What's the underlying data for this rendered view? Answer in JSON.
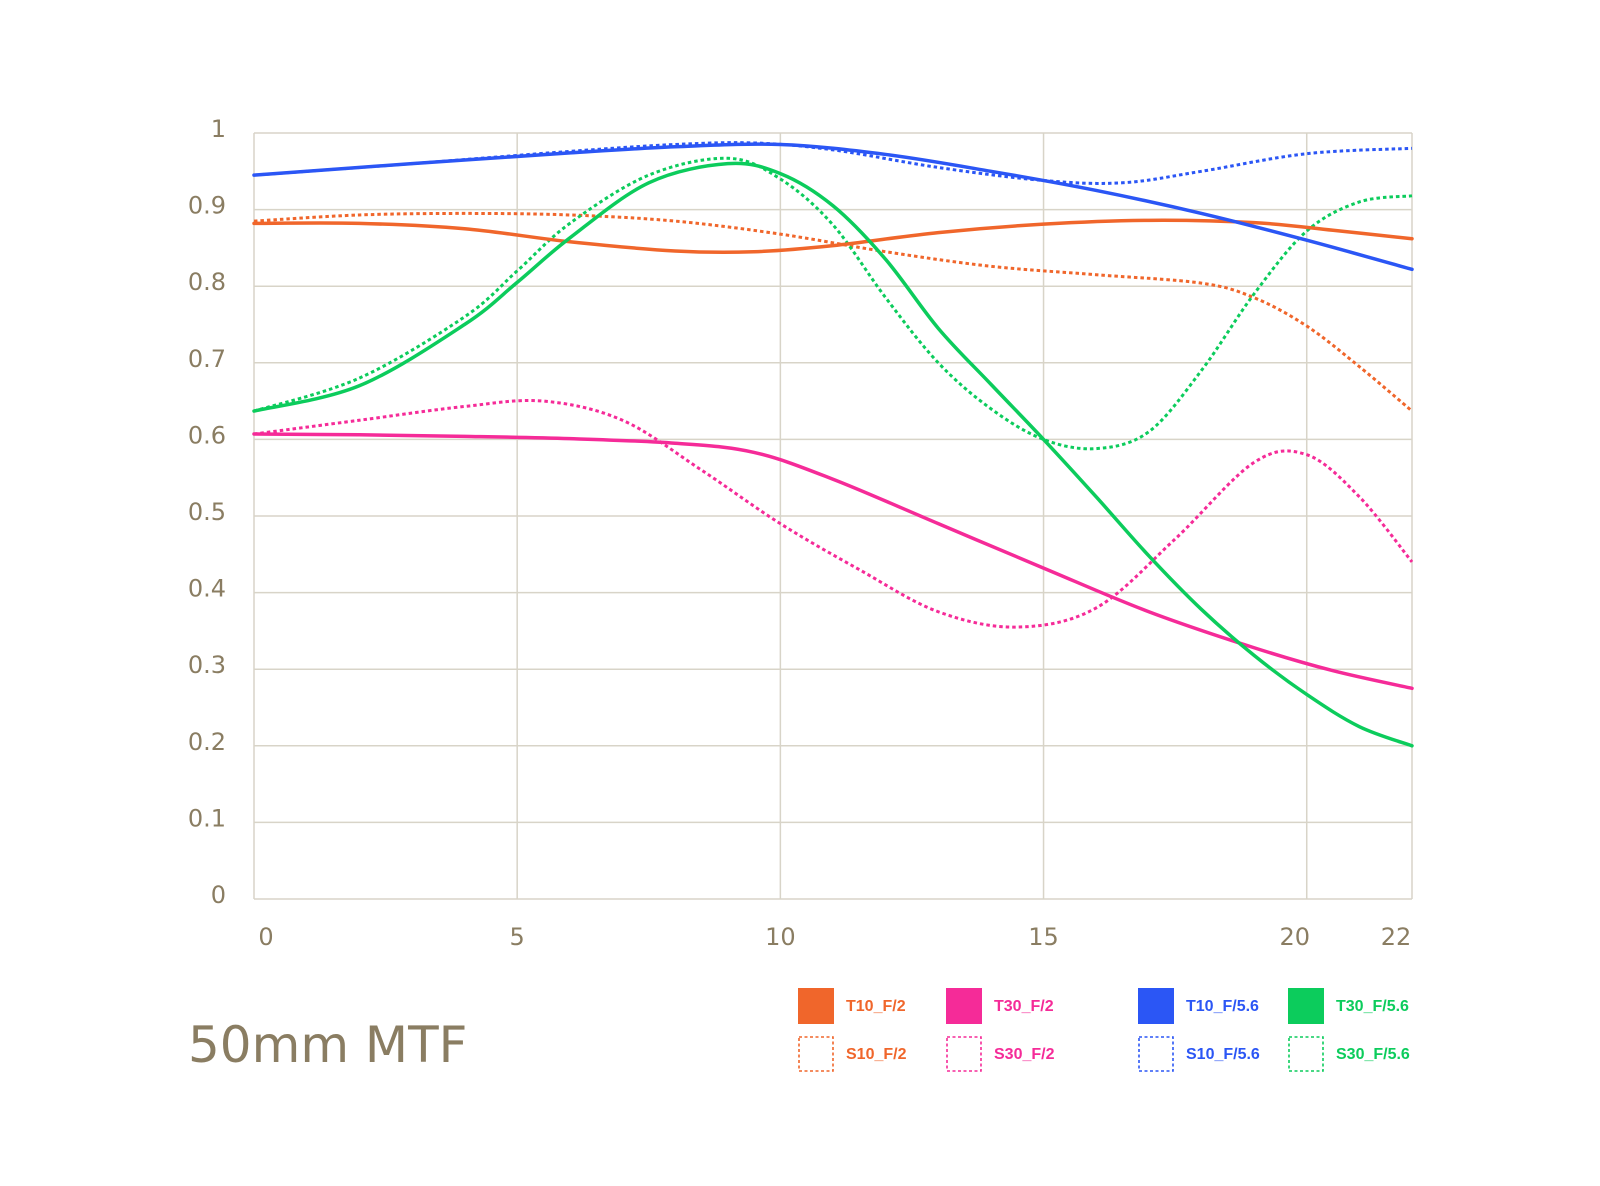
{
  "chart_data": {
    "type": "line",
    "title": "50mm MTF",
    "xlabel": "",
    "ylabel": "",
    "xlim": [
      0,
      22
    ],
    "ylim": [
      0,
      1
    ],
    "grid": true,
    "legend_position": "bottom-right",
    "x_ticks": [
      "0",
      "5",
      "10",
      "15",
      "20",
      "22"
    ],
    "x_tick_values": [
      0,
      5,
      10,
      15,
      20,
      22
    ],
    "y_ticks": [
      "0",
      "0.1",
      "0.2",
      "0.3",
      "0.4",
      "0.5",
      "0.6",
      "0.7",
      "0.8",
      "0.9",
      "1"
    ],
    "y_tick_values": [
      0,
      0.1,
      0.2,
      0.3,
      0.4,
      0.5,
      0.6,
      0.7,
      0.8,
      0.9,
      1
    ],
    "colors": {
      "orange": "#f0662b",
      "pink": "#f52b98",
      "blue": "#2b56f5",
      "green": "#0ccc5c",
      "grid": "#d8d4c8",
      "axis_text": "#8a7d62"
    },
    "series": [
      {
        "name": "T10_F/2",
        "color": "#f0662b",
        "dashed": false,
        "x": [
          0,
          2,
          4,
          6,
          8,
          9.5,
          11,
          13,
          15,
          17,
          19,
          20.5,
          22
        ],
        "y": [
          0.882,
          0.882,
          0.875,
          0.858,
          0.846,
          0.845,
          0.853,
          0.87,
          0.881,
          0.886,
          0.883,
          0.873,
          0.862
        ]
      },
      {
        "name": "S10_F/2",
        "color": "#f0662b",
        "dashed": true,
        "x": [
          0,
          2,
          4,
          6,
          8,
          10,
          12,
          14,
          16,
          18,
          19,
          20,
          21,
          22
        ],
        "y": [
          0.885,
          0.893,
          0.895,
          0.893,
          0.885,
          0.868,
          0.845,
          0.826,
          0.815,
          0.804,
          0.785,
          0.748,
          0.695,
          0.637
        ]
      },
      {
        "name": "T30_F/2",
        "color": "#f52b98",
        "dashed": false,
        "x": [
          0,
          2,
          4,
          6,
          8,
          9.5,
          11,
          13,
          15,
          17,
          19,
          20.5,
          22
        ],
        "y": [
          0.607,
          0.606,
          0.604,
          0.601,
          0.595,
          0.583,
          0.548,
          0.49,
          0.432,
          0.375,
          0.328,
          0.298,
          0.275
        ]
      },
      {
        "name": "S30_F/2",
        "color": "#f52b98",
        "dashed": true,
        "x": [
          0,
          2,
          4,
          5.5,
          7,
          8.5,
          10,
          11.5,
          13,
          14.5,
          16,
          17.5,
          19,
          20,
          21,
          22
        ],
        "y": [
          0.607,
          0.625,
          0.643,
          0.65,
          0.625,
          0.56,
          0.49,
          0.43,
          0.375,
          0.355,
          0.38,
          0.47,
          0.57,
          0.58,
          0.525,
          0.44
        ]
      },
      {
        "name": "T10_F/5.6",
        "color": "#2b56f5",
        "dashed": false,
        "x": [
          0,
          3,
          6,
          8,
          10,
          12,
          14,
          16,
          18,
          20,
          22
        ],
        "y": [
          0.945,
          0.96,
          0.974,
          0.982,
          0.985,
          0.972,
          0.95,
          0.925,
          0.895,
          0.86,
          0.822
        ]
      },
      {
        "name": "S10_F/5.6",
        "color": "#2b56f5",
        "dashed": true,
        "x": [
          0,
          3,
          6,
          8,
          9.5,
          11,
          13,
          15,
          16.5,
          18,
          20,
          22
        ],
        "y": [
          0.945,
          0.96,
          0.976,
          0.985,
          0.987,
          0.978,
          0.955,
          0.938,
          0.935,
          0.95,
          0.973,
          0.98
        ]
      },
      {
        "name": "T30_F/5.6",
        "color": "#0ccc5c",
        "dashed": false,
        "x": [
          0,
          2,
          4,
          5,
          6,
          7.5,
          9,
          10,
          11,
          12,
          13,
          14,
          15,
          16,
          17,
          18,
          19,
          20,
          21,
          22
        ],
        "y": [
          0.637,
          0.67,
          0.75,
          0.805,
          0.863,
          0.935,
          0.96,
          0.947,
          0.905,
          0.835,
          0.745,
          0.672,
          0.6,
          0.525,
          0.448,
          0.378,
          0.318,
          0.267,
          0.225,
          0.2
        ]
      },
      {
        "name": "S30_F/5.6",
        "color": "#0ccc5c",
        "dashed": true,
        "x": [
          0,
          2,
          4,
          5,
          6,
          7.5,
          9,
          10,
          11,
          12,
          13,
          14,
          15,
          16,
          17,
          18,
          19,
          20,
          21,
          22
        ],
        "y": [
          0.637,
          0.68,
          0.76,
          0.82,
          0.882,
          0.945,
          0.967,
          0.94,
          0.88,
          0.785,
          0.7,
          0.64,
          0.6,
          0.588,
          0.61,
          0.69,
          0.79,
          0.872,
          0.91,
          0.918
        ]
      }
    ]
  }
}
